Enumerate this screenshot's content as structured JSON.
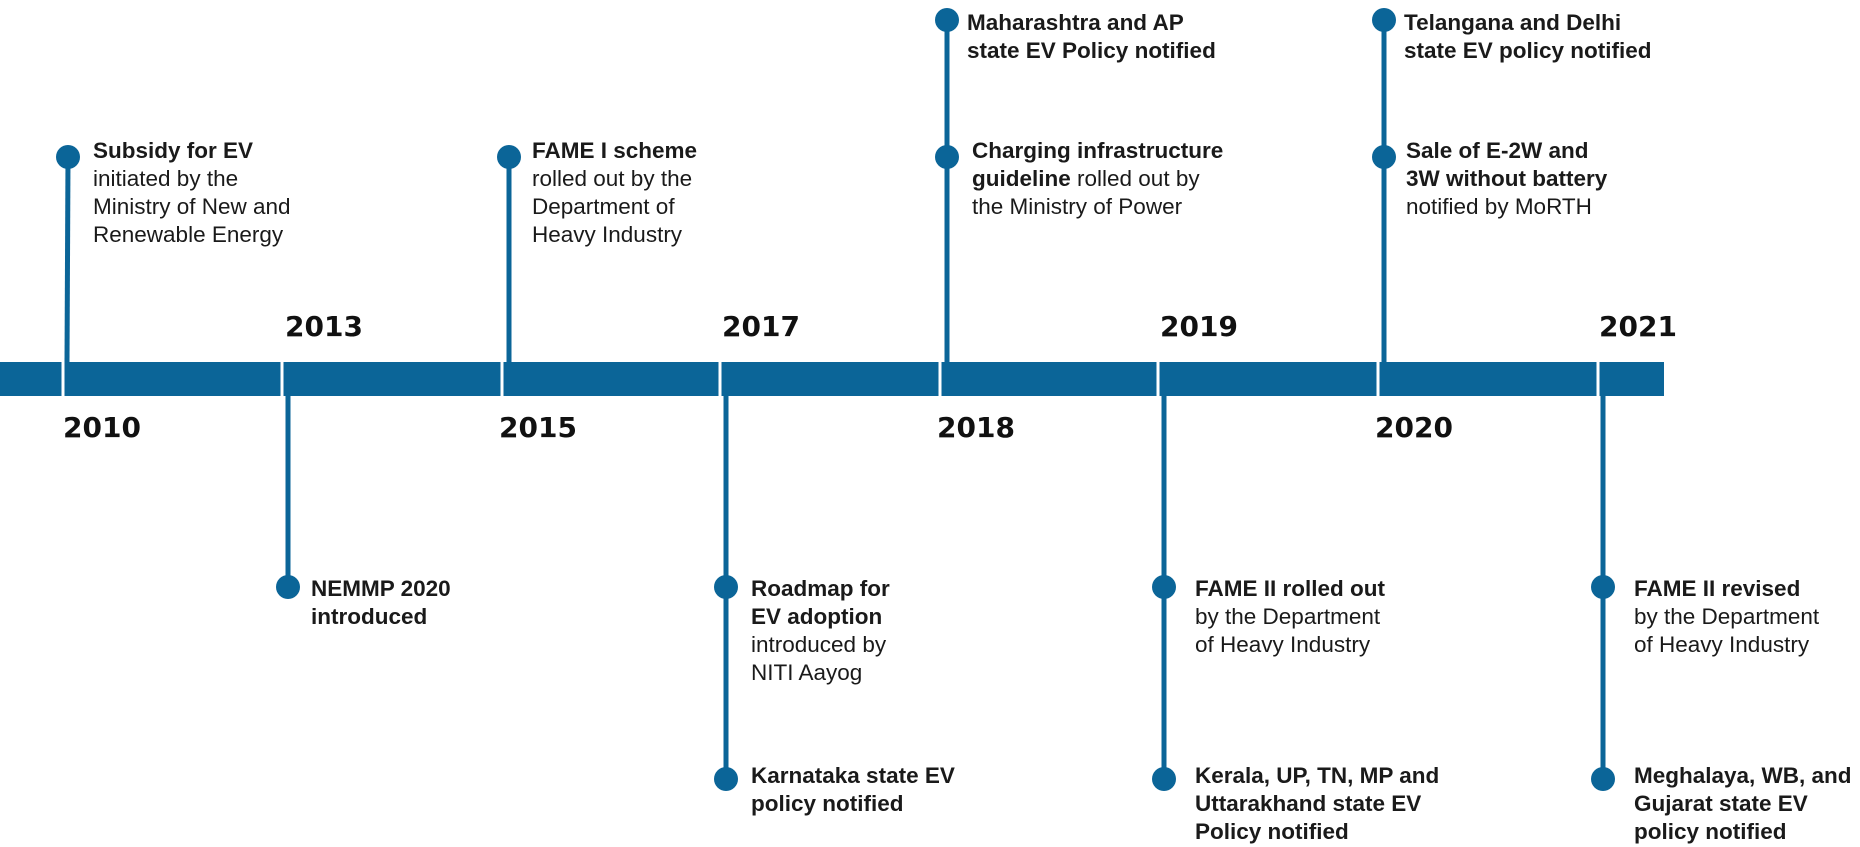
{
  "colors": {
    "timeline": "#0b6598",
    "text": "#1a1a1a",
    "year": "#111111"
  },
  "years": [
    {
      "id": "2010",
      "label": "2010"
    },
    {
      "id": "2013",
      "label": "2013"
    },
    {
      "id": "2015",
      "label": "2015"
    },
    {
      "id": "2017",
      "label": "2017"
    },
    {
      "id": "2018",
      "label": "2018"
    },
    {
      "id": "2019",
      "label": "2019"
    },
    {
      "id": "2020",
      "label": "2020"
    },
    {
      "id": "2021",
      "label": "2021"
    }
  ],
  "events": [
    {
      "year": "2010",
      "lines": [
        [
          {
            "t": "Subsidy for EV",
            "b": true
          }
        ],
        [
          {
            "t": "initiated by the",
            "b": false
          }
        ],
        [
          {
            "t": "Ministry of New and",
            "b": false
          }
        ],
        [
          {
            "t": "Renewable Energy",
            "b": false
          }
        ]
      ]
    },
    {
      "year": "2013",
      "lines": [
        [
          {
            "t": "NEMMP 2020",
            "b": true
          }
        ],
        [
          {
            "t": "introduced",
            "b": true
          }
        ]
      ]
    },
    {
      "year": "2015",
      "lines": [
        [
          {
            "t": "FAME I scheme",
            "b": true
          }
        ],
        [
          {
            "t": "rolled out by the",
            "b": false
          }
        ],
        [
          {
            "t": "Department of",
            "b": false
          }
        ],
        [
          {
            "t": "Heavy Industry",
            "b": false
          }
        ]
      ]
    },
    {
      "year": "2017",
      "lines": [
        [
          {
            "t": "Roadmap for",
            "b": true
          }
        ],
        [
          {
            "t": "EV adoption",
            "b": true
          }
        ],
        [
          {
            "t": "introduced by",
            "b": false
          }
        ],
        [
          {
            "t": "NITI Aayog",
            "b": false
          }
        ]
      ]
    },
    {
      "year": "2017",
      "lines": [
        [
          {
            "t": "Karnataka state EV",
            "b": true
          }
        ],
        [
          {
            "t": "policy notified",
            "b": true
          }
        ]
      ]
    },
    {
      "year": "2018",
      "lines": [
        [
          {
            "t": "Maharashtra and AP",
            "b": true
          }
        ],
        [
          {
            "t": "state EV Policy notified",
            "b": true
          }
        ]
      ]
    },
    {
      "year": "2018",
      "lines": [
        [
          {
            "t": "Charging infrastructure",
            "b": true
          }
        ],
        [
          {
            "t": "guideline",
            "b": true
          },
          {
            "t": " rolled out by",
            "b": false
          }
        ],
        [
          {
            "t": "the Ministry of Power",
            "b": false
          }
        ]
      ]
    },
    {
      "year": "2019",
      "lines": [
        [
          {
            "t": "FAME II rolled out",
            "b": true
          }
        ],
        [
          {
            "t": "by the Department",
            "b": false
          }
        ],
        [
          {
            "t": "of Heavy Industry",
            "b": false
          }
        ]
      ]
    },
    {
      "year": "2019",
      "lines": [
        [
          {
            "t": "Kerala, UP, TN, MP and",
            "b": true
          }
        ],
        [
          {
            "t": "Uttarakhand state EV",
            "b": true
          }
        ],
        [
          {
            "t": "Policy notified",
            "b": true
          }
        ]
      ]
    },
    {
      "year": "2020",
      "lines": [
        [
          {
            "t": "Telangana and Delhi",
            "b": true
          }
        ],
        [
          {
            "t": "state EV policy notified",
            "b": true
          }
        ]
      ]
    },
    {
      "year": "2020",
      "lines": [
        [
          {
            "t": "Sale of E-2W and",
            "b": true
          }
        ],
        [
          {
            "t": "3W without battery",
            "b": true
          }
        ],
        [
          {
            "t": "notified by MoRTH",
            "b": false
          }
        ]
      ]
    },
    {
      "year": "2021",
      "lines": [
        [
          {
            "t": "FAME II revised",
            "b": true
          }
        ],
        [
          {
            "t": "by the Department",
            "b": false
          }
        ],
        [
          {
            "t": "of Heavy Industry",
            "b": false
          }
        ]
      ]
    },
    {
      "year": "2021",
      "lines": [
        [
          {
            "t": "Meghalaya, WB, and",
            "b": true
          }
        ],
        [
          {
            "t": "Gujarat state EV",
            "b": true
          }
        ],
        [
          {
            "t": "policy notified",
            "b": true
          }
        ]
      ]
    }
  ]
}
